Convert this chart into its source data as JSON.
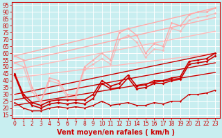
{
  "background_color": "#c8eef0",
  "grid_color": "#ffffff",
  "xlabel": "Vent moyen/en rafales ( km/h )",
  "x_ticks": [
    0,
    1,
    2,
    3,
    4,
    5,
    6,
    7,
    8,
    9,
    10,
    11,
    12,
    13,
    14,
    15,
    16,
    17,
    18,
    19,
    20,
    21,
    22,
    23
  ],
  "y_ticks": [
    15,
    20,
    25,
    30,
    35,
    40,
    45,
    50,
    55,
    60,
    65,
    70,
    75,
    80,
    85,
    90,
    95
  ],
  "xlim": [
    -0.3,
    23.5
  ],
  "ylim": [
    13,
    97
  ],
  "xlabel_color": "#cc0000",
  "xlabel_fontsize": 7,
  "tick_color": "#cc0000",
  "tick_fontsize": 5.5,
  "axis_line_color": "#cc0000",
  "series": [
    {
      "x": [
        0,
        23
      ],
      "y": [
        58,
        93
      ],
      "color": "#ffaaaa",
      "linewidth": 1.0,
      "marker": null,
      "markersize": 0,
      "alpha": 1.0
    },
    {
      "x": [
        0,
        23
      ],
      "y": [
        53,
        86
      ],
      "color": "#ffaaaa",
      "linewidth": 1.0,
      "marker": null,
      "markersize": 0,
      "alpha": 1.0
    },
    {
      "x": [
        0,
        23
      ],
      "y": [
        48,
        76
      ],
      "color": "#ffbbbb",
      "linewidth": 1.0,
      "marker": null,
      "markersize": 0,
      "alpha": 1.0
    },
    {
      "x": [
        0,
        23
      ],
      "y": [
        42,
        60
      ],
      "color": "#ffbbbb",
      "linewidth": 1.0,
      "marker": null,
      "markersize": 0,
      "alpha": 1.0
    },
    {
      "x": [
        0,
        23
      ],
      "y": [
        30,
        60
      ],
      "color": "#cc0000",
      "linewidth": 1.0,
      "marker": null,
      "markersize": 0,
      "alpha": 1.0
    },
    {
      "x": [
        0,
        23
      ],
      "y": [
        26,
        53
      ],
      "color": "#cc0000",
      "linewidth": 1.0,
      "marker": null,
      "markersize": 0,
      "alpha": 1.0
    },
    {
      "x": [
        0,
        23
      ],
      "y": [
        22,
        46
      ],
      "color": "#cc0000",
      "linewidth": 1.0,
      "marker": null,
      "markersize": 0,
      "alpha": 1.0
    },
    {
      "x": [
        0,
        1,
        2,
        3,
        4,
        5,
        6,
        7,
        8,
        9,
        10,
        11,
        12,
        13,
        14,
        15,
        16,
        17,
        18,
        19,
        20,
        21,
        22,
        23
      ],
      "y": [
        58,
        55,
        35,
        25,
        42,
        40,
        30,
        30,
        50,
        55,
        60,
        55,
        75,
        78,
        73,
        60,
        67,
        65,
        82,
        80,
        88,
        90,
        90,
        93
      ],
      "color": "#ffaaaa",
      "linewidth": 1.0,
      "marker": "D",
      "markersize": 2.0,
      "alpha": 1.0
    },
    {
      "x": [
        0,
        1,
        2,
        3,
        4,
        5,
        6,
        7,
        8,
        9,
        10,
        11,
        12,
        13,
        14,
        15,
        16,
        17,
        18,
        19,
        20,
        21,
        22,
        23
      ],
      "y": [
        53,
        50,
        32,
        24,
        40,
        38,
        28,
        28,
        48,
        52,
        56,
        52,
        70,
        73,
        68,
        57,
        63,
        62,
        78,
        76,
        84,
        86,
        87,
        89
      ],
      "color": "#ffaaaa",
      "linewidth": 1.0,
      "marker": "D",
      "markersize": 2.0,
      "alpha": 0.7
    },
    {
      "x": [
        0,
        1,
        2,
        3,
        4,
        5,
        6,
        7,
        8,
        9,
        10,
        11,
        12,
        13,
        14,
        15,
        16,
        17,
        18,
        19,
        20,
        21,
        22,
        23
      ],
      "y": [
        45,
        30,
        24,
        22,
        25,
        26,
        26,
        26,
        26,
        30,
        40,
        36,
        38,
        44,
        36,
        37,
        40,
        40,
        42,
        43,
        54,
        55,
        56,
        60
      ],
      "color": "#cc0000",
      "linewidth": 1.2,
      "marker": "D",
      "markersize": 2.0,
      "alpha": 1.0
    },
    {
      "x": [
        0,
        1,
        2,
        3,
        4,
        5,
        6,
        7,
        8,
        9,
        10,
        11,
        12,
        13,
        14,
        15,
        16,
        17,
        18,
        19,
        20,
        21,
        22,
        23
      ],
      "y": [
        44,
        28,
        22,
        20,
        23,
        24,
        23,
        24,
        23,
        27,
        38,
        34,
        35,
        42,
        34,
        35,
        38,
        38,
        40,
        41,
        52,
        53,
        54,
        58
      ],
      "color": "#cc0000",
      "linewidth": 1.2,
      "marker": "D",
      "markersize": 2.0,
      "alpha": 1.0
    },
    {
      "x": [
        0,
        1,
        2,
        3,
        4,
        5,
        6,
        7,
        8,
        9,
        10,
        11,
        12,
        13,
        14,
        15,
        16,
        17,
        18,
        19,
        20,
        21,
        22,
        23
      ],
      "y": [
        24,
        20,
        18,
        18,
        20,
        21,
        20,
        21,
        20,
        22,
        25,
        22,
        23,
        24,
        22,
        22,
        24,
        23,
        25,
        25,
        30,
        30,
        31,
        33
      ],
      "color": "#cc0000",
      "linewidth": 1.0,
      "marker": "D",
      "markersize": 1.5,
      "alpha": 1.0
    }
  ]
}
